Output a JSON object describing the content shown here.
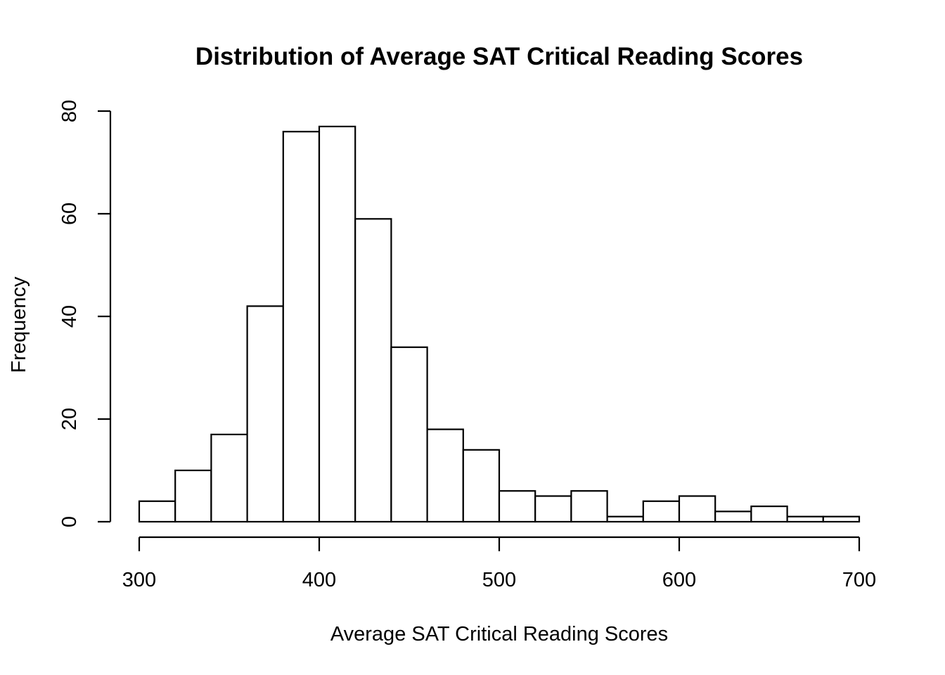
{
  "chart_data": {
    "type": "bar",
    "title": "Distribution of Average SAT Critical Reading Scores",
    "xlabel": "Average SAT Critical Reading Scores",
    "ylabel": "Frequency",
    "xlim": [
      300,
      700
    ],
    "ylim": [
      0,
      80
    ],
    "bins": [
      {
        "x0": 300,
        "x1": 320,
        "count": 4
      },
      {
        "x0": 320,
        "x1": 340,
        "count": 10
      },
      {
        "x0": 340,
        "x1": 360,
        "count": 17
      },
      {
        "x0": 360,
        "x1": 380,
        "count": 42
      },
      {
        "x0": 380,
        "x1": 400,
        "count": 76
      },
      {
        "x0": 400,
        "x1": 420,
        "count": 77
      },
      {
        "x0": 420,
        "x1": 440,
        "count": 59
      },
      {
        "x0": 440,
        "x1": 460,
        "count": 34
      },
      {
        "x0": 460,
        "x1": 480,
        "count": 18
      },
      {
        "x0": 480,
        "x1": 500,
        "count": 14
      },
      {
        "x0": 500,
        "x1": 520,
        "count": 6
      },
      {
        "x0": 520,
        "x1": 540,
        "count": 5
      },
      {
        "x0": 540,
        "x1": 560,
        "count": 6
      },
      {
        "x0": 560,
        "x1": 580,
        "count": 1
      },
      {
        "x0": 580,
        "x1": 600,
        "count": 4
      },
      {
        "x0": 600,
        "x1": 620,
        "count": 5
      },
      {
        "x0": 620,
        "x1": 640,
        "count": 2
      },
      {
        "x0": 640,
        "x1": 660,
        "count": 3
      },
      {
        "x0": 660,
        "x1": 680,
        "count": 1
      },
      {
        "x0": 680,
        "x1": 700,
        "count": 1
      }
    ],
    "x_ticks": [
      "300",
      "400",
      "500",
      "600",
      "700"
    ],
    "y_ticks": [
      "0",
      "20",
      "40",
      "60",
      "80"
    ],
    "grid": false,
    "bar_fill": "#ffffff",
    "bar_stroke": "#000000"
  }
}
